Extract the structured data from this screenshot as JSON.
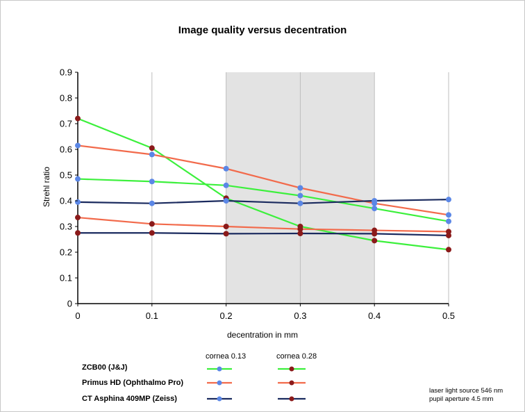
{
  "chart_data": {
    "type": "line",
    "title": "Image quality versus decentration",
    "xlabel": "decentration in mm",
    "ylabel": "Strehl ratio",
    "x": [
      0,
      0.1,
      0.2,
      0.3,
      0.4,
      0.5
    ],
    "x_ticks": [
      "0",
      "0.1",
      "0.2",
      "0.3",
      "0.4",
      "0.5"
    ],
    "y_ticks": [
      "0",
      "0.1",
      "0.2",
      "0.3",
      "0.4",
      "0.5",
      "0.6",
      "0.7",
      "0.8",
      "0.9"
    ],
    "xlim": [
      0,
      0.5
    ],
    "ylim": [
      0,
      0.9
    ],
    "shaded_region": [
      0.2,
      0.4
    ],
    "grid": "vertical",
    "series": [
      {
        "lens": "ZCB00 (J&J)",
        "cornea": "cornea 0.13",
        "color": "#3cf03c",
        "marker": "#5b87e6",
        "values": [
          0.485,
          0.475,
          0.46,
          0.42,
          0.37,
          0.32
        ]
      },
      {
        "lens": "ZCB00 (J&J)",
        "cornea": "cornea 0.28",
        "color": "#3cf03c",
        "marker": "#8b1a1a",
        "values": [
          0.72,
          0.605,
          0.41,
          0.3,
          0.245,
          0.21
        ]
      },
      {
        "lens": "Primus HD (Ophthalmo Pro)",
        "cornea": "cornea 0.13",
        "color": "#f26a4b",
        "marker": "#5b87e6",
        "values": [
          0.615,
          0.58,
          0.525,
          0.45,
          0.39,
          0.345
        ]
      },
      {
        "lens": "Primus HD (Ophthalmo Pro)",
        "cornea": "cornea 0.28",
        "color": "#f26a4b",
        "marker": "#8b1a1a",
        "values": [
          0.335,
          0.31,
          0.3,
          0.29,
          0.285,
          0.28
        ]
      },
      {
        "lens": "CT Asphina 409MP (Zeiss)",
        "cornea": "cornea 0.13",
        "color": "#1a2a5e",
        "marker": "#5b87e6",
        "values": [
          0.395,
          0.39,
          0.4,
          0.39,
          0.4,
          0.405
        ]
      },
      {
        "lens": "CT Asphina 409MP (Zeiss)",
        "cornea": "cornea 0.28",
        "color": "#1a2a5e",
        "marker": "#8b1a1a",
        "values": [
          0.275,
          0.275,
          0.272,
          0.273,
          0.272,
          0.265
        ]
      }
    ]
  },
  "legend": {
    "col_headers": [
      "cornea 0.13",
      "cornea 0.28"
    ],
    "rows": [
      "ZCB00 (J&J)",
      "Primus HD (Ophthalmo Pro)",
      "CT Asphina 409MP (Zeiss)"
    ],
    "colors": [
      "#3cf03c",
      "#f26a4b",
      "#1a2a5e"
    ],
    "marker_colors": [
      "#5b87e6",
      "#8b1a1a"
    ]
  },
  "notes": [
    "laser light source 546 nm",
    "pupil aperture 4.5 mm"
  ]
}
